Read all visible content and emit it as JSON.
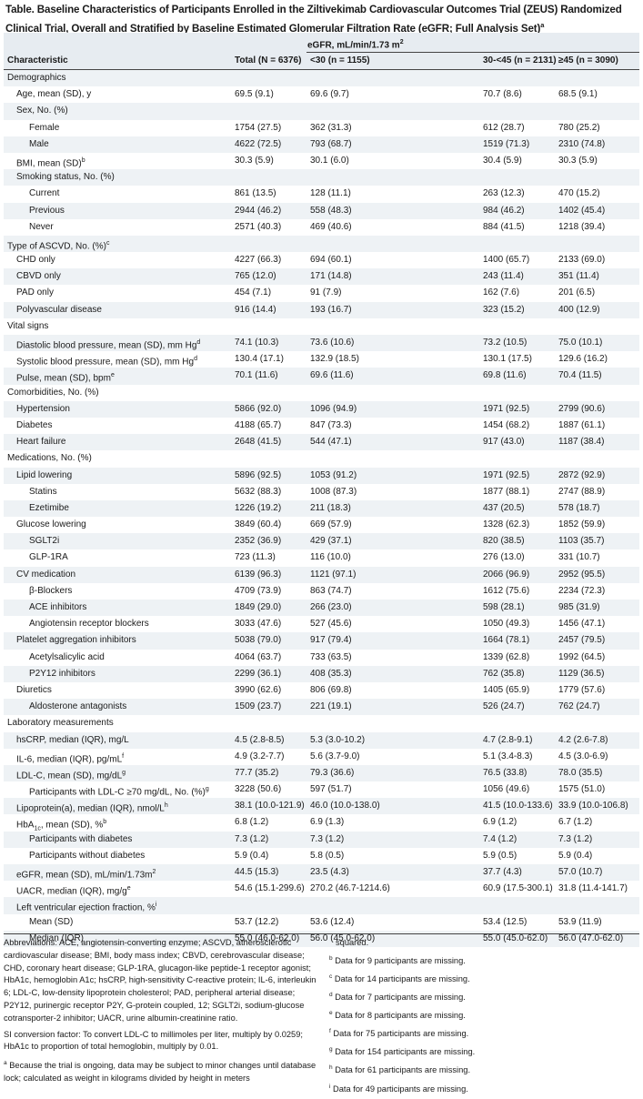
{
  "title": {
    "text": "Table. Baseline Characteristics of Participants Enrolled in the Ziltivekimab Cardiovascular Outcomes Trial (ZEUS) Randomized Clinical Trial, Overall and Stratified by Baseline Estimated Glomerular Filtration Rate (eGFR; Full Analysis Set)",
    "sup": "a"
  },
  "header": {
    "egfr_group": "eGFR, mL/min/1.73 m",
    "egfr_sup": "2",
    "columns": [
      "Characteristic",
      "Total (N = 6376)",
      "<30 (n = 1155)",
      "30-<45 (n = 2131)",
      "≥45 (n = 3090)"
    ]
  },
  "rows": [
    {
      "label": "Demographics",
      "indent": 0,
      "values": [
        "",
        "",
        "",
        ""
      ]
    },
    {
      "label": "Age, mean (SD), y",
      "indent": 1,
      "values": [
        "69.5 (9.1)",
        "69.6 (9.7)",
        "70.7 (8.6)",
        "68.5 (9.1)"
      ]
    },
    {
      "label": "Sex, No. (%)",
      "indent": 1,
      "values": [
        "",
        "",
        "",
        ""
      ]
    },
    {
      "label": "Female",
      "indent": 2,
      "values": [
        "1754 (27.5)",
        "362 (31.3)",
        "612 (28.7)",
        "780 (25.2)"
      ]
    },
    {
      "label": "Male",
      "indent": 2,
      "values": [
        "4622 (72.5)",
        "793 (68.7)",
        "1519 (71.3)",
        "2310 (74.8)"
      ]
    },
    {
      "label": "BMI, mean (SD)",
      "sup": "b",
      "indent": 1,
      "values": [
        "30.3 (5.9)",
        "30.1 (6.0)",
        "30.4 (5.9)",
        "30.3 (5.9)"
      ]
    },
    {
      "label": "Smoking status, No. (%)",
      "indent": 1,
      "values": [
        "",
        "",
        "",
        ""
      ]
    },
    {
      "label": "Current",
      "indent": 2,
      "values": [
        "861 (13.5)",
        "128 (11.1)",
        "263 (12.3)",
        "470 (15.2)"
      ]
    },
    {
      "label": "Previous",
      "indent": 2,
      "values": [
        "2944 (46.2)",
        "558 (48.3)",
        "984 (46.2)",
        "1402 (45.4)"
      ]
    },
    {
      "label": "Never",
      "indent": 2,
      "values": [
        "2571 (40.3)",
        "469 (40.6)",
        "884 (41.5)",
        "1218 (39.4)"
      ]
    },
    {
      "label": "Type of ASCVD, No. (%)",
      "sup": "c",
      "indent": 0,
      "values": [
        "",
        "",
        "",
        ""
      ]
    },
    {
      "label": "CHD only",
      "indent": 1,
      "values": [
        "4227 (66.3)",
        "694 (60.1)",
        "1400 (65.7)",
        "2133 (69.0)"
      ]
    },
    {
      "label": "CBVD only",
      "indent": 1,
      "values": [
        "765 (12.0)",
        "171 (14.8)",
        "243 (11.4)",
        "351 (11.4)"
      ]
    },
    {
      "label": "PAD only",
      "indent": 1,
      "values": [
        "454 (7.1)",
        "91 (7.9)",
        "162 (7.6)",
        "201 (6.5)"
      ]
    },
    {
      "label": "Polyvascular disease",
      "indent": 1,
      "values": [
        "916 (14.4)",
        "193 (16.7)",
        "323 (15.2)",
        "400 (12.9)"
      ]
    },
    {
      "label": "Vital signs",
      "indent": 0,
      "values": [
        "",
        "",
        "",
        ""
      ]
    },
    {
      "label": "Diastolic blood pressure, mean (SD), mm Hg",
      "sup": "d",
      "indent": 1,
      "values": [
        "74.1 (10.3)",
        "73.6 (10.6)",
        "73.2 (10.5)",
        "75.0 (10.1)"
      ]
    },
    {
      "label": "Systolic blood pressure, mean (SD), mm Hg",
      "sup": "d",
      "indent": 1,
      "values": [
        "130.4 (17.1)",
        "132.9 (18.5)",
        "130.1 (17.5)",
        "129.6 (16.2)"
      ]
    },
    {
      "label": "Pulse, mean (SD), bpm",
      "sup": "e",
      "indent": 1,
      "values": [
        "70.1 (11.6)",
        "69.6 (11.6)",
        "69.8 (11.6)",
        "70.4 (11.5)"
      ]
    },
    {
      "label": "Comorbidities, No. (%)",
      "indent": 0,
      "values": [
        "",
        "",
        "",
        ""
      ]
    },
    {
      "label": "Hypertension",
      "indent": 1,
      "values": [
        "5866 (92.0)",
        "1096 (94.9)",
        "1971 (92.5)",
        "2799 (90.6)"
      ]
    },
    {
      "label": "Diabetes",
      "indent": 1,
      "values": [
        "4188 (65.7)",
        "847 (73.3)",
        "1454 (68.2)",
        "1887 (61.1)"
      ]
    },
    {
      "label": "Heart failure",
      "indent": 1,
      "values": [
        "2648 (41.5)",
        "544 (47.1)",
        "917 (43.0)",
        "1187 (38.4)"
      ]
    },
    {
      "label": "Medications, No. (%)",
      "indent": 0,
      "values": [
        "",
        "",
        "",
        ""
      ]
    },
    {
      "label": "Lipid lowering",
      "indent": 1,
      "values": [
        "5896 (92.5)",
        "1053 (91.2)",
        "1971 (92.5)",
        "2872 (92.9)"
      ]
    },
    {
      "label": "Statins",
      "indent": 2,
      "values": [
        "5632 (88.3)",
        "1008 (87.3)",
        "1877 (88.1)",
        "2747 (88.9)"
      ]
    },
    {
      "label": "Ezetimibe",
      "indent": 2,
      "values": [
        "1226 (19.2)",
        "211 (18.3)",
        "437 (20.5)",
        "578 (18.7)"
      ]
    },
    {
      "label": "Glucose lowering",
      "indent": 1,
      "values": [
        "3849 (60.4)",
        "669 (57.9)",
        "1328 (62.3)",
        "1852 (59.9)"
      ]
    },
    {
      "label": "SGLT2i",
      "indent": 2,
      "values": [
        "2352 (36.9)",
        "429 (37.1)",
        "820 (38.5)",
        "1103 (35.7)"
      ]
    },
    {
      "label": "GLP-1RA",
      "indent": 2,
      "values": [
        "723 (11.3)",
        "116 (10.0)",
        "276 (13.0)",
        "331 (10.7)"
      ]
    },
    {
      "label": "CV medication",
      "indent": 1,
      "values": [
        "6139 (96.3)",
        "1121 (97.1)",
        "2066 (96.9)",
        "2952 (95.5)"
      ]
    },
    {
      "label": "β-Blockers",
      "indent": 2,
      "values": [
        "4709 (73.9)",
        "863 (74.7)",
        "1612 (75.6)",
        "2234 (72.3)"
      ]
    },
    {
      "label": "ACE inhibitors",
      "indent": 2,
      "values": [
        "1849 (29.0)",
        "266 (23.0)",
        "598 (28.1)",
        "985 (31.9)"
      ]
    },
    {
      "label": "Angiotensin receptor blockers",
      "indent": 2,
      "values": [
        "3033 (47.6)",
        "527 (45.6)",
        "1050 (49.3)",
        "1456 (47.1)"
      ]
    },
    {
      "label": "Platelet aggregation inhibitors",
      "indent": 1,
      "values": [
        "5038 (79.0)",
        "917 (79.4)",
        "1664 (78.1)",
        "2457 (79.5)"
      ]
    },
    {
      "label": "Acetylsalicylic acid",
      "indent": 2,
      "values": [
        "4064 (63.7)",
        "733 (63.5)",
        "1339 (62.8)",
        "1992 (64.5)"
      ]
    },
    {
      "label": "P2Y12 inhibitors",
      "indent": 2,
      "values": [
        "2299 (36.1)",
        "408 (35.3)",
        "762 (35.8)",
        "1129 (36.5)"
      ]
    },
    {
      "label": "Diuretics",
      "indent": 1,
      "values": [
        "3990 (62.6)",
        "806 (69.8)",
        "1405 (65.9)",
        "1779 (57.6)"
      ]
    },
    {
      "label": "Aldosterone antagonists",
      "indent": 2,
      "values": [
        "1509 (23.7)",
        "221 (19.1)",
        "526 (24.7)",
        "762 (24.7)"
      ]
    },
    {
      "label": "Laboratory measurements",
      "indent": 0,
      "values": [
        "",
        "",
        "",
        ""
      ]
    },
    {
      "label": "hsCRP, median (IQR), mg/L",
      "indent": 1,
      "values": [
        "4.5 (2.8-8.5)",
        "5.3 (3.0-10.2)",
        "4.7 (2.8-9.1)",
        "4.2 (2.6-7.8)"
      ]
    },
    {
      "label": "IL-6, median (IQR), pg/mL",
      "sup": "f",
      "indent": 1,
      "values": [
        "4.9 (3.2-7.7)",
        "5.6 (3.7-9.0)",
        "5.1 (3.4-8.3)",
        "4.5 (3.0-6.9)"
      ]
    },
    {
      "label": "LDL-C, mean (SD), mg/dL",
      "sup": "g",
      "indent": 1,
      "values": [
        "77.7 (35.2)",
        "79.3 (36.6)",
        "76.5 (33.8)",
        "78.0 (35.5)"
      ]
    },
    {
      "label": "Participants with LDL-C ≥70 mg/dL, No. (%)",
      "sup": "g",
      "indent": 2,
      "values": [
        "3228 (50.6)",
        "597 (51.7)",
        "1056 (49.6)",
        "1575 (51.0)"
      ]
    },
    {
      "label": "Lipoprotein(a), median (IQR), nmol/L",
      "sup": "h",
      "indent": 1,
      "values": [
        "38.1 (10.0-121.9)",
        "46.0 (10.0-138.0)",
        "41.5 (10.0-133.6)",
        "33.9 (10.0-106.8)"
      ]
    },
    {
      "label": "HbA",
      "sub": "1c",
      "label_after": ", mean (SD), %",
      "sup": "b",
      "indent": 1,
      "values": [
        "6.8 (1.2)",
        "6.9 (1.3)",
        "6.9 (1.2)",
        "6.7 (1.2)"
      ]
    },
    {
      "label": "Participants with diabetes",
      "indent": 2,
      "values": [
        "7.3 (1.2)",
        "7.3 (1.2)",
        "7.4 (1.2)",
        "7.3 (1.2)"
      ]
    },
    {
      "label": "Participants without diabetes",
      "indent": 2,
      "values": [
        "5.9 (0.4)",
        "5.8 (0.5)",
        "5.9 (0.5)",
        "5.9 (0.4)"
      ]
    },
    {
      "label": "eGFR, mean (SD), mL/min/1.73m",
      "sup": "2",
      "indent": 1,
      "values": [
        "44.5 (15.3)",
        "23.5 (4.3)",
        "37.7 (4.3)",
        "57.0 (10.7)"
      ]
    },
    {
      "label": "UACR, median (IQR), mg/g",
      "sup": "e",
      "indent": 1,
      "values": [
        "54.6 (15.1-299.6)",
        "270.2 (46.7-1214.6)",
        "60.9 (17.5-300.1)",
        "31.8 (11.4-141.7)"
      ]
    },
    {
      "label": "Left ventricular ejection fraction, %",
      "sup": "i",
      "indent": 1,
      "values": [
        "",
        "",
        "",
        ""
      ]
    },
    {
      "label": "Mean (SD)",
      "indent": 2,
      "values": [
        "53.7 (12.2)",
        "53.6 (12.4)",
        "53.4 (12.5)",
        "53.9 (11.9)"
      ]
    },
    {
      "label": "Median (IQR)",
      "indent": 2,
      "values": [
        "55.0 (46.0-62.0)",
        "56.0 (45.0-62.0)",
        "55.0 (45.0-62.0)",
        "56.0 (47.0-62.0)"
      ]
    }
  ],
  "footnotes": {
    "abbreviations": "Abbreviations: ACE, angiotensin-converting enzyme; ASCVD, atherosclerotic cardiovascular disease; BMI, body mass index; CBVD, cerebrovascular disease; CHD, coronary heart disease; GLP-1RA, glucagon-like peptide-1 receptor agonist; HbA1c, hemoglobin A1c; hsCRP, high-sensitivity C-reactive protein; IL-6, interleukin 6; LDL-C, low-density lipoprotein cholesterol; PAD, peripheral arterial disease; P2Y12, purinergic receptor P2Y, G-protein coupled, 12; SGLT2i, sodium-glucose cotransporter-2 inhibitor; UACR, urine albumin-creatinine ratio.",
    "si_conversion": "SI conversion factor: To convert LDL-C to millimoles per liter, multiply by 0.0259; HbA1c to proportion of total hemoglobin, multiply by 0.01.",
    "note_a_mark": "a",
    "note_a": "Because the trial is ongoing, data may be subject to minor changes until database lock; calculated as weight in kilograms divided by height in meters",
    "note_a_cont": "squared.",
    "notes": [
      {
        "mark": "b",
        "text": "Data for 9 participants are missing."
      },
      {
        "mark": "c",
        "text": "Data for 14 participants are missing."
      },
      {
        "mark": "d",
        "text": "Data for 7 participants are missing."
      },
      {
        "mark": "e",
        "text": "Data for 8 participants are missing."
      },
      {
        "mark": "f",
        "text": "Data for 75 participants are missing."
      },
      {
        "mark": "g",
        "text": "Data for 154 participants are missing."
      },
      {
        "mark": "h",
        "text": "Data for 61 participants are missing."
      },
      {
        "mark": "i",
        "text": "Data for 49 participants are missing."
      }
    ]
  }
}
